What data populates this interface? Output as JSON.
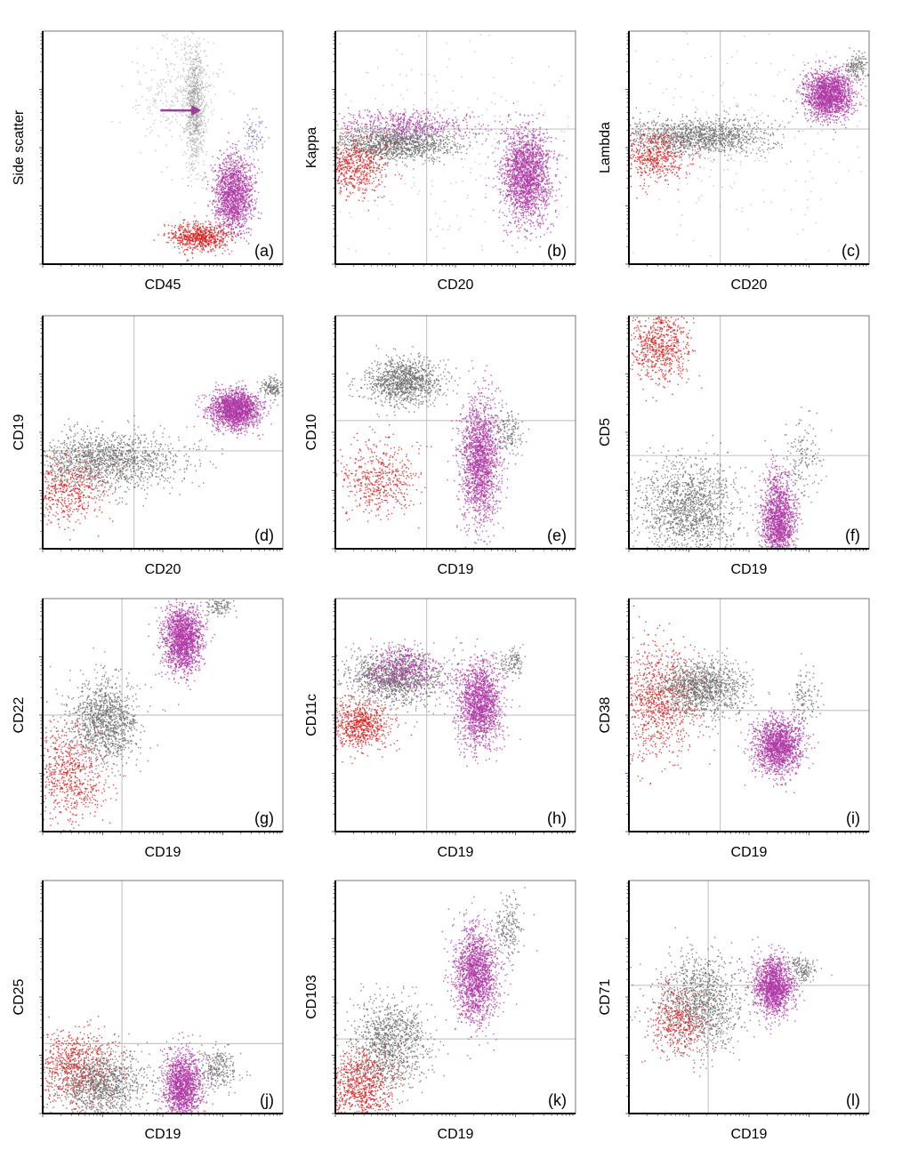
{
  "figure": {
    "colors": {
      "neoplastic": "#b03aa6",
      "lymphocytes": "#d92020",
      "other": "#6e6e6e",
      "granulocytes": "#9a9a9a",
      "monocytes": "#7a7ac0",
      "arrow": "#9b3d9b",
      "quadrant": "#c8c8c8"
    }
  },
  "chart_data": [
    {
      "panel": "(a)",
      "type": "scatter",
      "xlabel": "CD45",
      "ylabel": "Side scatter",
      "quadrants": false,
      "arrow": true,
      "clusters": [
        {
          "population": "granulocytes",
          "cx": 0.63,
          "cy": 0.68,
          "sx": 0.022,
          "sy": 0.13,
          "n": 900,
          "color": "granulocytes"
        },
        {
          "population": "granulocytes-sparse",
          "cx": 0.55,
          "cy": 0.75,
          "sx": 0.09,
          "sy": 0.12,
          "n": 300,
          "color": "granulocytes"
        },
        {
          "population": "monocytes",
          "cx": 0.88,
          "cy": 0.56,
          "sx": 0.02,
          "sy": 0.05,
          "n": 80,
          "color": "monocytes"
        },
        {
          "population": "neoplastic",
          "cx": 0.79,
          "cy": 0.3,
          "sx": 0.04,
          "sy": 0.08,
          "n": 1500,
          "color": "neoplastic"
        },
        {
          "population": "lymphocytes",
          "cx": 0.65,
          "cy": 0.12,
          "sx": 0.06,
          "sy": 0.03,
          "n": 700,
          "color": "lymphocytes"
        }
      ]
    },
    {
      "panel": "(b)",
      "type": "scatter",
      "xlabel": "CD20",
      "ylabel": "Kappa",
      "quadrants": true,
      "qx": 0.38,
      "qy": 0.58,
      "clusters": [
        {
          "population": "grey-band",
          "cx": 0.25,
          "cy": 0.52,
          "sx": 0.13,
          "sy": 0.035,
          "n": 1300,
          "color": "other"
        },
        {
          "population": "magenta-band",
          "cx": 0.3,
          "cy": 0.6,
          "sx": 0.14,
          "sy": 0.03,
          "n": 500,
          "color": "neoplastic"
        },
        {
          "population": "lymphocytes",
          "cx": 0.08,
          "cy": 0.42,
          "sx": 0.07,
          "sy": 0.06,
          "n": 600,
          "color": "lymphocytes"
        },
        {
          "population": "neoplastic",
          "cx": 0.79,
          "cy": 0.38,
          "sx": 0.05,
          "sy": 0.1,
          "n": 2000,
          "color": "neoplastic"
        },
        {
          "population": "scatter",
          "cx": 0.5,
          "cy": 0.5,
          "sx": 0.3,
          "sy": 0.25,
          "n": 250,
          "color": "granulocytes"
        }
      ]
    },
    {
      "panel": "(c)",
      "type": "scatter",
      "xlabel": "CD20",
      "ylabel": "Lambda",
      "quadrants": true,
      "qx": 0.38,
      "qy": 0.58,
      "clusters": [
        {
          "population": "grey-band",
          "cx": 0.28,
          "cy": 0.55,
          "sx": 0.15,
          "sy": 0.04,
          "n": 1300,
          "color": "other"
        },
        {
          "population": "lymphocytes",
          "cx": 0.1,
          "cy": 0.46,
          "sx": 0.07,
          "sy": 0.05,
          "n": 500,
          "color": "lymphocytes"
        },
        {
          "population": "neoplastic",
          "cx": 0.83,
          "cy": 0.73,
          "sx": 0.05,
          "sy": 0.05,
          "n": 1800,
          "color": "neoplastic"
        },
        {
          "population": "bright-tail",
          "cx": 0.95,
          "cy": 0.85,
          "sx": 0.025,
          "sy": 0.03,
          "n": 150,
          "color": "other"
        },
        {
          "population": "scatter",
          "cx": 0.4,
          "cy": 0.55,
          "sx": 0.3,
          "sy": 0.25,
          "n": 250,
          "color": "granulocytes"
        }
      ]
    },
    {
      "panel": "(d)",
      "type": "scatter",
      "xlabel": "CD20",
      "ylabel": "CD19",
      "quadrants": true,
      "qx": 0.38,
      "qy": 0.42,
      "clusters": [
        {
          "population": "grey-band",
          "cx": 0.25,
          "cy": 0.38,
          "sx": 0.16,
          "sy": 0.06,
          "n": 1500,
          "color": "other"
        },
        {
          "population": "lymphocytes",
          "cx": 0.1,
          "cy": 0.25,
          "sx": 0.08,
          "sy": 0.07,
          "n": 500,
          "color": "lymphocytes"
        },
        {
          "population": "neoplastic",
          "cx": 0.8,
          "cy": 0.6,
          "sx": 0.05,
          "sy": 0.04,
          "n": 1800,
          "color": "neoplastic"
        },
        {
          "population": "bright-tail",
          "cx": 0.95,
          "cy": 0.69,
          "sx": 0.025,
          "sy": 0.02,
          "n": 150,
          "color": "other"
        }
      ]
    },
    {
      "panel": "(e)",
      "type": "scatter",
      "xlabel": "CD19",
      "ylabel": "CD10",
      "quadrants": true,
      "qx": 0.38,
      "qy": 0.55,
      "clusters": [
        {
          "population": "grey-top",
          "cx": 0.28,
          "cy": 0.72,
          "sx": 0.08,
          "sy": 0.05,
          "n": 1100,
          "color": "other"
        },
        {
          "population": "lymphocytes",
          "cx": 0.18,
          "cy": 0.3,
          "sx": 0.08,
          "sy": 0.08,
          "n": 500,
          "color": "lymphocytes"
        },
        {
          "population": "neoplastic",
          "cx": 0.6,
          "cy": 0.38,
          "sx": 0.04,
          "sy": 0.13,
          "n": 1800,
          "color": "neoplastic"
        },
        {
          "population": "bright-tail",
          "cx": 0.72,
          "cy": 0.5,
          "sx": 0.03,
          "sy": 0.05,
          "n": 150,
          "color": "other"
        }
      ]
    },
    {
      "panel": "(f)",
      "type": "scatter",
      "xlabel": "CD19",
      "ylabel": "CD5",
      "quadrants": true,
      "qx": 0.38,
      "qy": 0.4,
      "clusters": [
        {
          "population": "lymphocytes",
          "cx": 0.13,
          "cy": 0.88,
          "sx": 0.06,
          "sy": 0.08,
          "n": 700,
          "color": "lymphocytes"
        },
        {
          "population": "grey-bottom",
          "cx": 0.25,
          "cy": 0.18,
          "sx": 0.1,
          "sy": 0.1,
          "n": 1400,
          "color": "other"
        },
        {
          "population": "neoplastic",
          "cx": 0.62,
          "cy": 0.12,
          "sx": 0.035,
          "sy": 0.1,
          "n": 1600,
          "color": "neoplastic"
        },
        {
          "population": "bright-tail",
          "cx": 0.72,
          "cy": 0.38,
          "sx": 0.04,
          "sy": 0.08,
          "n": 150,
          "color": "other"
        }
      ]
    },
    {
      "panel": "(g)",
      "type": "scatter",
      "xlabel": "CD19",
      "ylabel": "CD22",
      "quadrants": true,
      "qx": 0.33,
      "qy": 0.5,
      "clusters": [
        {
          "population": "lymphocytes",
          "cx": 0.1,
          "cy": 0.25,
          "sx": 0.08,
          "sy": 0.1,
          "n": 700,
          "color": "lymphocytes"
        },
        {
          "population": "grey-diag",
          "cx": 0.25,
          "cy": 0.48,
          "sx": 0.07,
          "sy": 0.09,
          "n": 1200,
          "color": "other"
        },
        {
          "population": "neoplastic",
          "cx": 0.58,
          "cy": 0.83,
          "sx": 0.04,
          "sy": 0.07,
          "n": 1700,
          "color": "neoplastic"
        },
        {
          "population": "bright-tail",
          "cx": 0.73,
          "cy": 0.97,
          "sx": 0.03,
          "sy": 0.02,
          "n": 120,
          "color": "other"
        }
      ]
    },
    {
      "panel": "(h)",
      "type": "scatter",
      "xlabel": "CD19",
      "ylabel": "CD11c",
      "quadrants": true,
      "qx": 0.38,
      "qy": 0.5,
      "clusters": [
        {
          "population": "grey-top",
          "cx": 0.25,
          "cy": 0.66,
          "sx": 0.1,
          "sy": 0.06,
          "n": 1200,
          "color": "other"
        },
        {
          "population": "magenta-top",
          "cx": 0.28,
          "cy": 0.7,
          "sx": 0.08,
          "sy": 0.05,
          "n": 500,
          "color": "neoplastic"
        },
        {
          "population": "lymphocytes",
          "cx": 0.1,
          "cy": 0.46,
          "sx": 0.06,
          "sy": 0.05,
          "n": 700,
          "color": "lymphocytes"
        },
        {
          "population": "neoplastic",
          "cx": 0.6,
          "cy": 0.55,
          "sx": 0.045,
          "sy": 0.09,
          "n": 1700,
          "color": "neoplastic"
        },
        {
          "population": "bright-tail",
          "cx": 0.73,
          "cy": 0.73,
          "sx": 0.03,
          "sy": 0.03,
          "n": 120,
          "color": "other"
        }
      ]
    },
    {
      "panel": "(i)",
      "type": "scatter",
      "xlabel": "CD19",
      "ylabel": "CD38",
      "quadrants": true,
      "qx": 0.38,
      "qy": 0.52,
      "clusters": [
        {
          "population": "lymphocytes",
          "cx": 0.12,
          "cy": 0.56,
          "sx": 0.08,
          "sy": 0.13,
          "n": 900,
          "color": "lymphocytes"
        },
        {
          "population": "grey-middle",
          "cx": 0.3,
          "cy": 0.62,
          "sx": 0.09,
          "sy": 0.06,
          "n": 1200,
          "color": "other"
        },
        {
          "population": "neoplastic",
          "cx": 0.62,
          "cy": 0.37,
          "sx": 0.05,
          "sy": 0.06,
          "n": 1600,
          "color": "neoplastic"
        },
        {
          "population": "bright-tail",
          "cx": 0.73,
          "cy": 0.58,
          "sx": 0.03,
          "sy": 0.06,
          "n": 130,
          "color": "other"
        }
      ]
    },
    {
      "panel": "(j)",
      "type": "scatter",
      "xlabel": "CD19",
      "ylabel": "CD25",
      "quadrants": true,
      "qx": 0.33,
      "qy": 0.3,
      "clusters": [
        {
          "population": "lymphocytes",
          "cx": 0.13,
          "cy": 0.2,
          "sx": 0.09,
          "sy": 0.08,
          "n": 800,
          "color": "lymphocytes"
        },
        {
          "population": "grey-bottom",
          "cx": 0.25,
          "cy": 0.13,
          "sx": 0.1,
          "sy": 0.07,
          "n": 1100,
          "color": "other"
        },
        {
          "population": "neoplastic",
          "cx": 0.58,
          "cy": 0.12,
          "sx": 0.04,
          "sy": 0.07,
          "n": 1500,
          "color": "neoplastic"
        },
        {
          "population": "bright-tail",
          "cx": 0.73,
          "cy": 0.2,
          "sx": 0.04,
          "sy": 0.05,
          "n": 250,
          "color": "other"
        }
      ]
    },
    {
      "panel": "(k)",
      "type": "scatter",
      "xlabel": "CD19",
      "ylabel": "CD103",
      "quadrants": false,
      "qx": null,
      "qy": 0.32,
      "clusters": [
        {
          "population": "lymphocytes",
          "cx": 0.1,
          "cy": 0.12,
          "sx": 0.07,
          "sy": 0.08,
          "n": 800,
          "color": "lymphocytes"
        },
        {
          "population": "grey-diag",
          "cx": 0.22,
          "cy": 0.3,
          "sx": 0.08,
          "sy": 0.1,
          "n": 1100,
          "color": "other"
        },
        {
          "population": "neoplastic",
          "cx": 0.58,
          "cy": 0.6,
          "sx": 0.045,
          "sy": 0.1,
          "n": 1700,
          "color": "neoplastic"
        },
        {
          "population": "bright-tail",
          "cx": 0.72,
          "cy": 0.8,
          "sx": 0.03,
          "sy": 0.06,
          "n": 200,
          "color": "other"
        }
      ]
    },
    {
      "panel": "(l)",
      "type": "scatter",
      "xlabel": "CD19",
      "ylabel": "CD71",
      "quadrants": true,
      "qx": 0.33,
      "qy": 0.55,
      "clusters": [
        {
          "population": "grey-left",
          "cx": 0.3,
          "cy": 0.48,
          "sx": 0.09,
          "sy": 0.1,
          "n": 1200,
          "color": "other"
        },
        {
          "population": "lymphocytes",
          "cx": 0.2,
          "cy": 0.4,
          "sx": 0.06,
          "sy": 0.07,
          "n": 400,
          "color": "lymphocytes"
        },
        {
          "population": "neoplastic",
          "cx": 0.6,
          "cy": 0.55,
          "sx": 0.04,
          "sy": 0.06,
          "n": 1500,
          "color": "neoplastic"
        },
        {
          "population": "bright-tail",
          "cx": 0.72,
          "cy": 0.62,
          "sx": 0.03,
          "sy": 0.03,
          "n": 150,
          "color": "other"
        }
      ]
    }
  ]
}
